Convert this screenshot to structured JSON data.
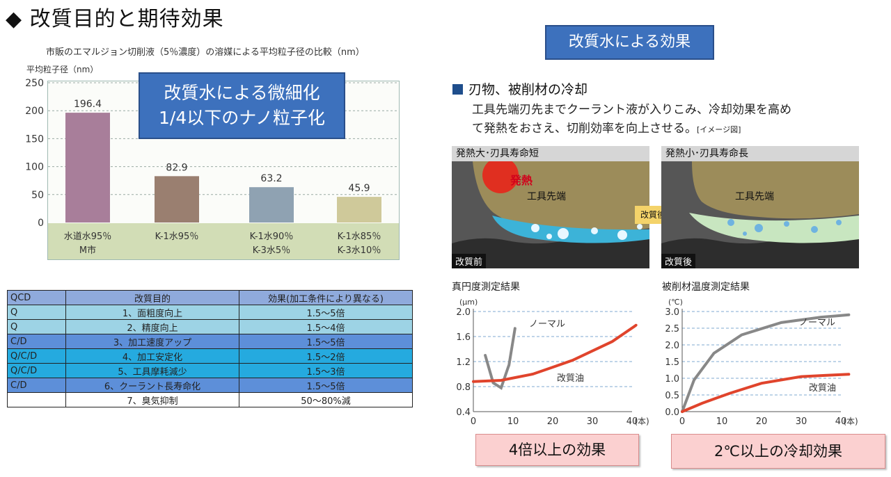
{
  "page_title": "◆ 改質目的と期待効果",
  "left_chart": {
    "caption": "市販のエマルジョン切削液（5％濃度）の溶媒による平均粒子径の比較（nm）",
    "unit_label": "平均粒子径（nm）",
    "callout_line1": "改質水による微細化",
    "callout_line2": "1/4以下のナノ粒子化"
  },
  "chart_data": [
    {
      "type": "bar",
      "ylabel": "平均粒子径（nm）",
      "ylim": [
        0,
        250
      ],
      "yticks": [
        "250",
        "200",
        "150",
        "100",
        "50",
        "0"
      ],
      "grid": true,
      "categories": [
        {
          "line1": "水道水95％",
          "line2": "M市"
        },
        {
          "line1": "K-1水95％",
          "line2": ""
        },
        {
          "line1": "K-1水90％",
          "line2": "K-3水5％"
        },
        {
          "line1": "K-1水85％",
          "line2": "K-3水10％"
        }
      ],
      "values": [
        196.4,
        82.9,
        63.2,
        45.9
      ],
      "value_labels": [
        "196.4",
        "82.9",
        "63.2",
        "45.9"
      ],
      "colors": [
        "#a87e9a",
        "#9a7f70",
        "#8fa2b2",
        "#cfc99a"
      ]
    },
    {
      "type": "line",
      "title": "真円度測定結果",
      "ylabel": "(μm)",
      "xlabel": "(本)",
      "xlim": [
        0,
        40
      ],
      "ylim": [
        0.4,
        2.0
      ],
      "xticks": [
        "0",
        "10",
        "20",
        "30",
        "40"
      ],
      "yticks": [
        "2.0",
        "1.6",
        "1.2",
        "0.8",
        "0.4"
      ],
      "series": [
        {
          "name": "ノーマル",
          "color": "#888888",
          "x": [
            3,
            5,
            7,
            9,
            10.5
          ],
          "y": [
            1.3,
            0.86,
            0.78,
            1.15,
            1.73
          ]
        },
        {
          "name": "改質油",
          "color": "#e0442c",
          "x": [
            0,
            7,
            15,
            25,
            35,
            41
          ],
          "y": [
            0.88,
            0.9,
            1.0,
            1.22,
            1.52,
            1.78
          ]
        }
      ]
    },
    {
      "type": "line",
      "title": "被削材温度測定結果",
      "ylabel": "(℃)",
      "xlabel": "(本)",
      "xlim": [
        0,
        40
      ],
      "ylim": [
        0,
        3.0
      ],
      "xticks": [
        "0",
        "10",
        "20",
        "30",
        "40"
      ],
      "yticks": [
        "3.0",
        "2.5",
        "2.0",
        "1.5",
        "1.0",
        "0.5",
        "0.0"
      ],
      "series": [
        {
          "name": "ノーマル",
          "color": "#888888",
          "x": [
            0,
            3,
            8,
            15,
            25,
            35,
            42
          ],
          "y": [
            0.0,
            0.95,
            1.75,
            2.3,
            2.67,
            2.83,
            2.9
          ]
        },
        {
          "name": "改質油",
          "color": "#e0442c",
          "x": [
            0,
            5,
            12,
            20,
            30,
            42
          ],
          "y": [
            0.0,
            0.25,
            0.55,
            0.85,
            1.05,
            1.12
          ]
        }
      ]
    }
  ],
  "table": {
    "headers": [
      "QCD",
      "改質目的",
      "効果(加工条件により異なる)"
    ],
    "rows": [
      [
        "Q",
        "1、面粗度向上",
        "1.5～5倍"
      ],
      [
        "Q",
        "2、精度向上",
        "1.5～4倍"
      ],
      [
        "C/D",
        "3、加工速度アップ",
        "1.5～5倍"
      ],
      [
        "Q/C/D",
        "4、加工安定化",
        "1.5～2倍"
      ],
      [
        "Q/C/D",
        "5、工具摩耗減少",
        "1.5～3倍"
      ],
      [
        "C/D",
        "6、クーラント長寿命化",
        "1.5～5倍"
      ],
      [
        "",
        "7、臭気抑制",
        "50～80%減"
      ]
    ]
  },
  "right": {
    "callout": "改質水による効果",
    "section_title": "刃物、被削材の冷却",
    "desc_line1": "工具先端刃先までクーラント液が入りこみ、冷却効果を高め",
    "desc_line2": "て発熱をおさえ、切削効率を向上させる。",
    "desc_note": "[イメージ図]",
    "panel_before_title": "発熱大･刃具寿命短",
    "panel_after_title": "発熱小･刃具寿命長",
    "heat_label": "発熱",
    "tool_tip_label": "工具先端",
    "arrow_label": "改質後",
    "tag_before": "改質前",
    "tag_after": "改質後",
    "result1": "4倍以上の効果",
    "result2": "2℃以上の冷却効果"
  }
}
